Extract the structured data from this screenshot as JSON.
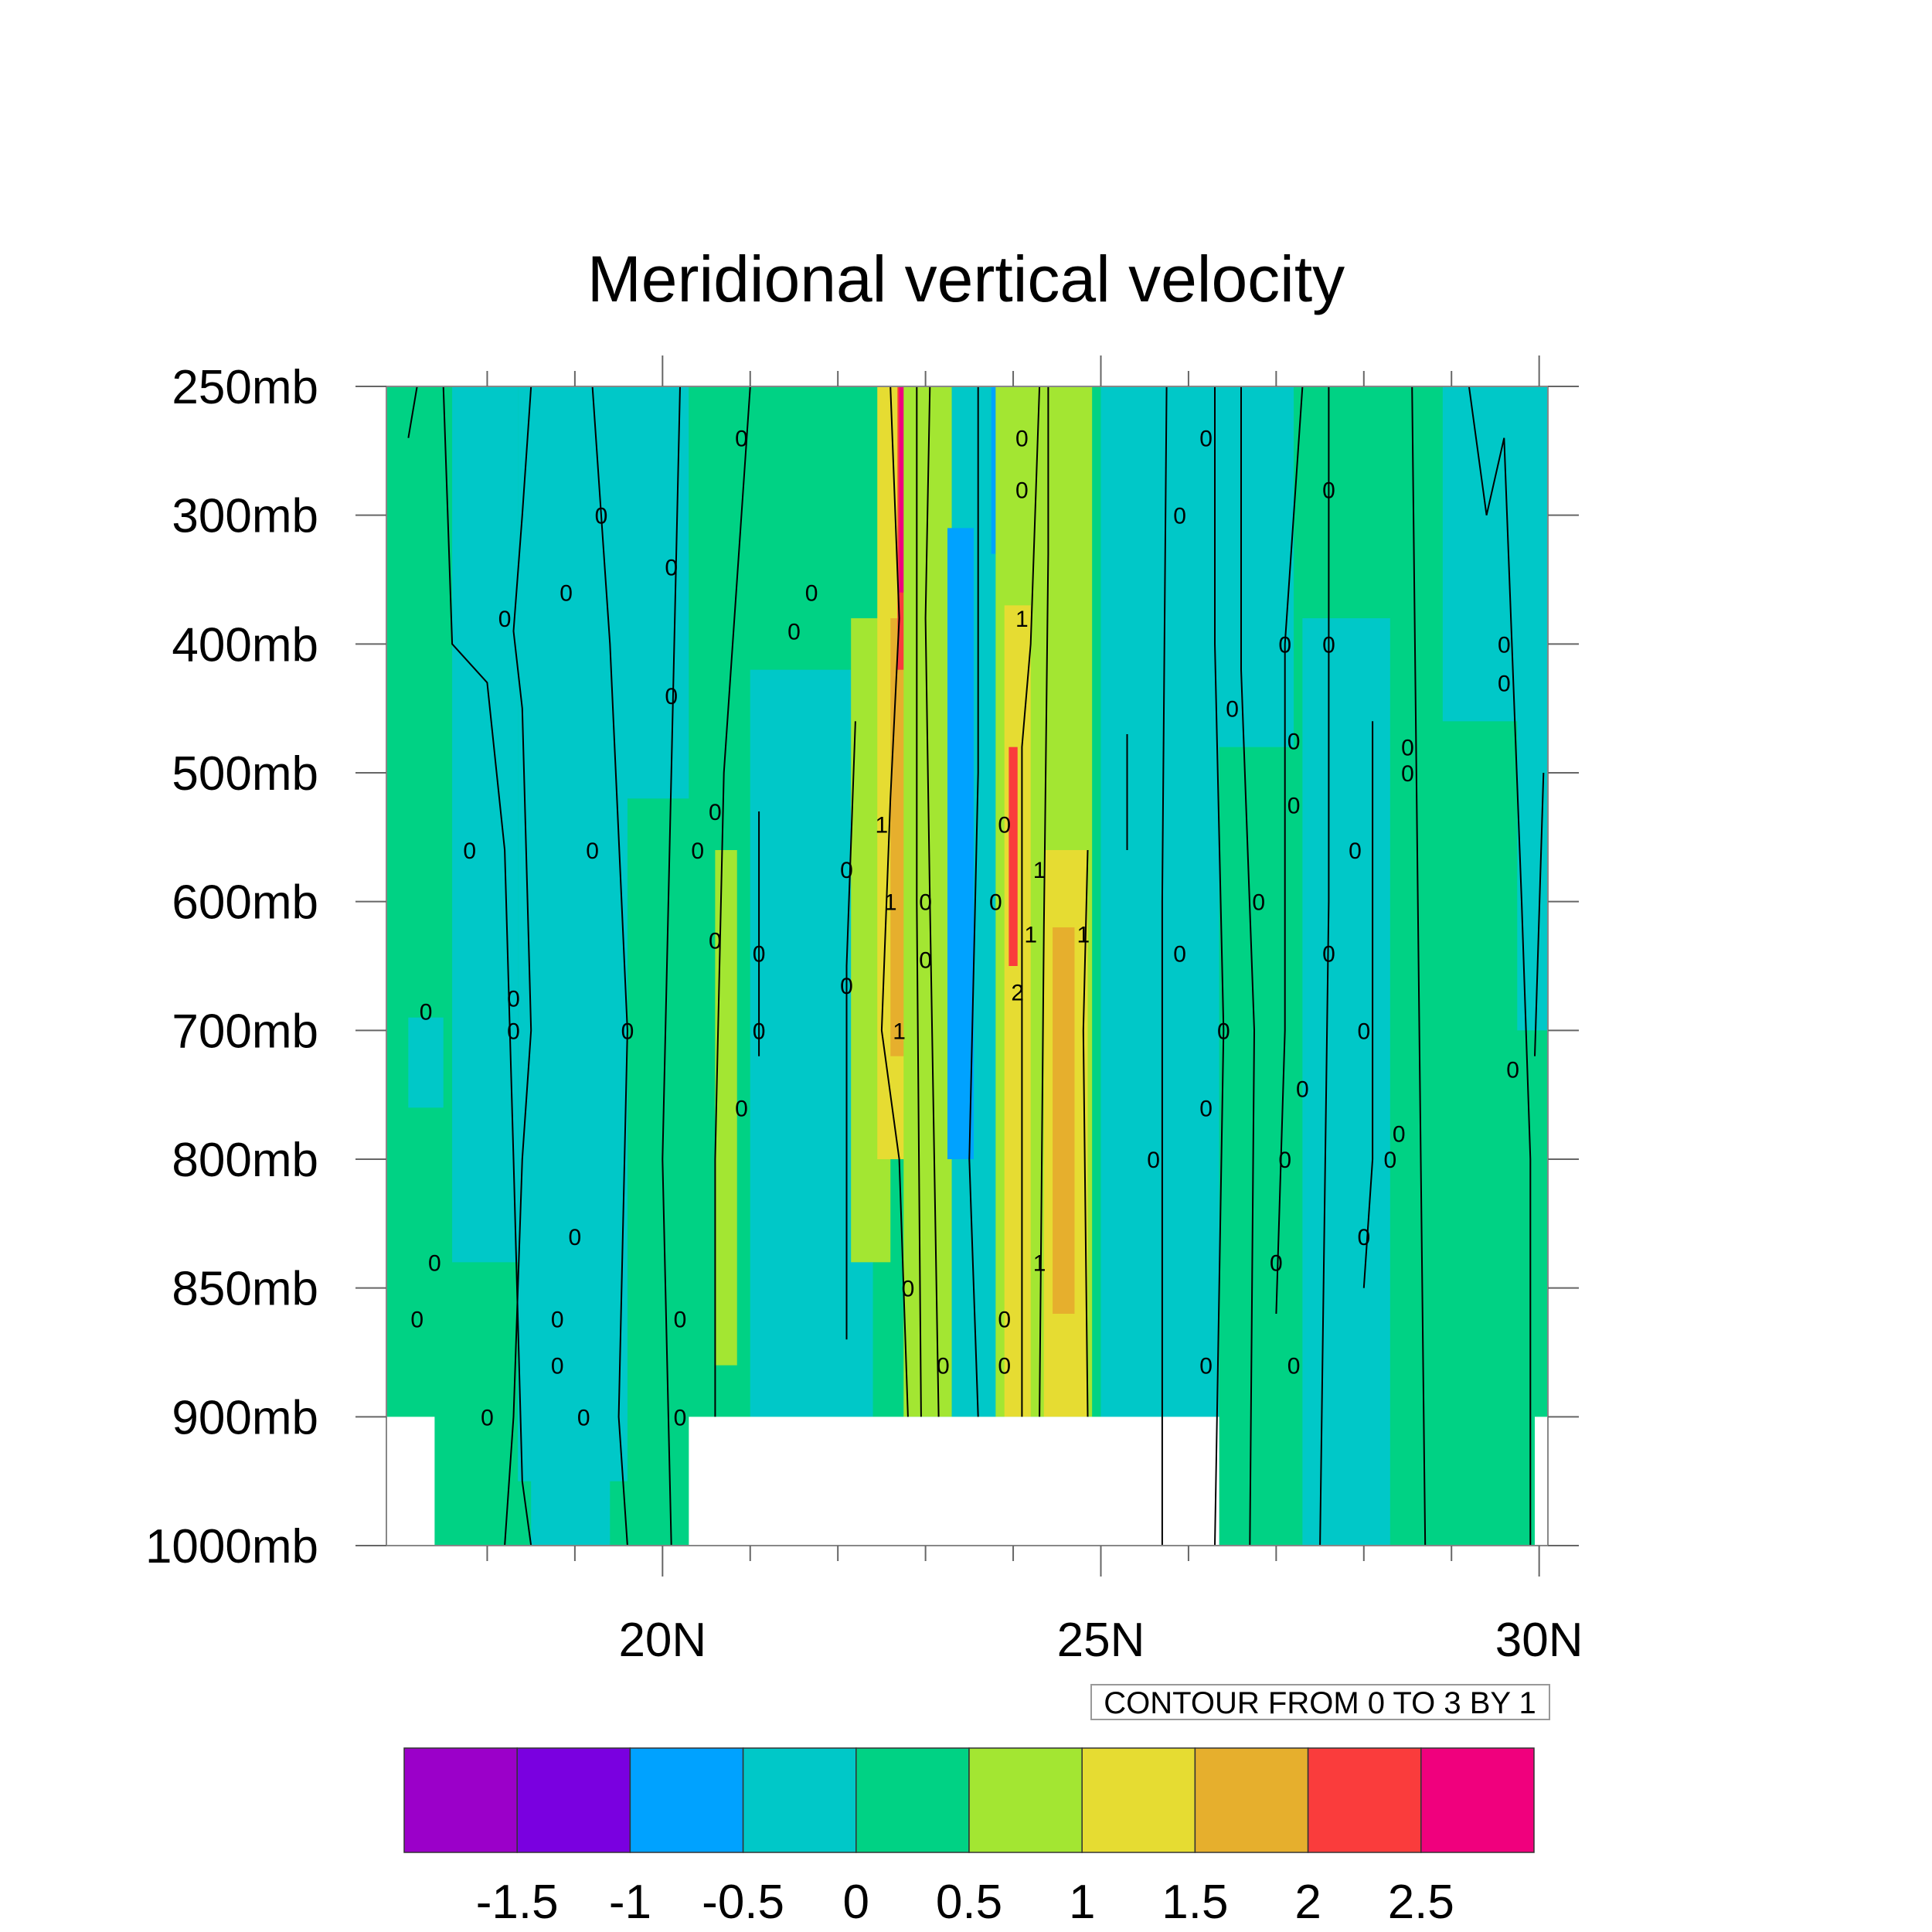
{
  "chart_data": {
    "type": "heatmap",
    "title": "Meridional vertical velocity",
    "xlabel": "",
    "ylabel": "",
    "xlim": [
      16.85,
      30.1
    ],
    "ylim": [
      1000,
      250
    ],
    "x_ticks": [
      20,
      25,
      30
    ],
    "x_tick_labels": [
      "20N",
      "25N",
      "30N"
    ],
    "x_minor_ticks": [
      18,
      19,
      21,
      22,
      23,
      24,
      26,
      27,
      28,
      29
    ],
    "y_levels": [
      250,
      300,
      400,
      500,
      600,
      700,
      800,
      850,
      900,
      1000
    ],
    "y_tick_labels": [
      "250mb",
      "300mb",
      "400mb",
      "500mb",
      "600mb",
      "700mb",
      "800mb",
      "850mb",
      "900mb",
      "1000mb"
    ],
    "contour_info": "CONTOUR FROM 0 TO 3 BY 1",
    "contour_line_labels": [
      "0",
      "1",
      "2"
    ],
    "colorbar": {
      "boundaries": [
        "-1.5",
        "-1",
        "-0.5",
        "0",
        "0.5",
        "1",
        "1.5",
        "2",
        "2.5"
      ],
      "colors": [
        "#9B00C9",
        "#7A00E0",
        "#00A2FF",
        "#00C8C8",
        "#00D284",
        "#A3E632",
        "#E6DC32",
        "#E6AF2D",
        "#FA3C3C",
        "#F0007D"
      ]
    },
    "missing_regions": [
      {
        "lon": [
          16.85,
          17.4
        ],
        "pressure": [
          900,
          1000
        ]
      },
      {
        "lon": [
          20.3,
          26.35
        ],
        "pressure": [
          900,
          1000
        ]
      },
      {
        "lon": [
          29.95,
          30.1
        ],
        "pressure": [
          900,
          1000
        ]
      }
    ],
    "bands": [
      {
        "lon": [
          16.85,
          30.1
        ],
        "pressure": [
          250,
          1000
        ],
        "value": 0.25
      },
      {
        "lon": [
          17.6,
          18.35
        ],
        "pressure": [
          250,
          840
        ],
        "value": -0.25
      },
      {
        "lon": [
          18.35,
          19.6
        ],
        "pressure": [
          250,
          950
        ],
        "value": -0.25
      },
      {
        "lon": [
          17.1,
          17.5
        ],
        "pressure": [
          690,
          760
        ],
        "value": -0.25
      },
      {
        "lon": [
          18.5,
          19.4
        ],
        "pressure": [
          850,
          1000
        ],
        "value": -0.25
      },
      {
        "lon": [
          19.3,
          20.3
        ],
        "pressure": [
          250,
          520
        ],
        "value": -0.25
      },
      {
        "lon": [
          20.3,
          22.4
        ],
        "pressure": [
          250,
          330
        ],
        "value": 0.25
      },
      {
        "lon": [
          21.0,
          22.4
        ],
        "pressure": [
          420,
          900
        ],
        "value": -0.25
      },
      {
        "lon": [
          20.6,
          20.85
        ],
        "pressure": [
          560,
          880
        ],
        "value": 0.75
      },
      {
        "lon": [
          22.15,
          22.6
        ],
        "pressure": [
          380,
          840
        ],
        "value": 0.75
      },
      {
        "lon": [
          22.45,
          22.95
        ],
        "pressure": [
          250,
          800
        ],
        "value": 1.25
      },
      {
        "lon": [
          22.6,
          22.85
        ],
        "pressure": [
          380,
          720
        ],
        "value": 1.75
      },
      {
        "lon": [
          22.68,
          22.78
        ],
        "pressure": [
          250,
          420
        ],
        "value": 2.25
      },
      {
        "lon": [
          22.7,
          22.76
        ],
        "pressure": [
          250,
          360
        ],
        "value": 2.75
      },
      {
        "lon": [
          22.95,
          23.1
        ],
        "pressure": [
          250,
          300
        ],
        "value": 2.25
      },
      {
        "lon": [
          22.75,
          23.3
        ],
        "pressure": [
          250,
          900
        ],
        "value": 0.75
      },
      {
        "lon": [
          23.3,
          23.8
        ],
        "pressure": [
          250,
          900
        ],
        "value": -0.25
      },
      {
        "lon": [
          23.25,
          23.55
        ],
        "pressure": [
          310,
          800
        ],
        "value": -0.75
      },
      {
        "lon": [
          23.75,
          23.85
        ],
        "pressure": [
          250,
          330
        ],
        "value": -0.75
      },
      {
        "lon": [
          23.8,
          24.9
        ],
        "pressure": [
          250,
          900
        ],
        "value": 0.75
      },
      {
        "lon": [
          23.9,
          24.2
        ],
        "pressure": [
          370,
          900
        ],
        "value": 1.25
      },
      {
        "lon": [
          24.35,
          24.85
        ],
        "pressure": [
          560,
          900
        ],
        "value": 1.25
      },
      {
        "lon": [
          24.45,
          24.7
        ],
        "pressure": [
          620,
          860
        ],
        "value": 1.75
      },
      {
        "lon": [
          23.95,
          24.05
        ],
        "pressure": [
          480,
          650
        ],
        "value": 2.25
      },
      {
        "lon": [
          25.2,
          25.4
        ],
        "pressure": [
          390,
          580
        ],
        "value": 0.75
      },
      {
        "lon": [
          25.0,
          26.35
        ],
        "pressure": [
          250,
          1000
        ],
        "value": -0.25
      },
      {
        "lon": [
          26.35,
          27.2
        ],
        "pressure": [
          250,
          480
        ],
        "value": -0.25
      },
      {
        "lon": [
          27.3,
          28.3
        ],
        "pressure": [
          380,
          1000
        ],
        "value": -0.25
      },
      {
        "lon": [
          28.9,
          30.1
        ],
        "pressure": [
          250,
          460
        ],
        "value": -0.25
      },
      {
        "lon": [
          29.75,
          30.1
        ],
        "pressure": [
          250,
          700
        ],
        "value": -0.25
      }
    ],
    "contour_lines": [
      [
        [
          17.1,
          270
        ],
        [
          17.2,
          250
        ]
      ],
      [
        [
          17.5,
          250
        ],
        [
          17.6,
          400
        ],
        [
          18.0,
          430
        ],
        [
          18.2,
          560
        ],
        [
          18.3,
          800
        ],
        [
          18.4,
          950
        ],
        [
          18.5,
          1000
        ]
      ],
      [
        [
          18.5,
          250
        ],
        [
          18.4,
          300
        ],
        [
          18.3,
          390
        ],
        [
          18.4,
          450
        ],
        [
          18.5,
          700
        ],
        [
          18.4,
          800
        ],
        [
          18.3,
          900
        ],
        [
          18.2,
          1000
        ]
      ],
      [
        [
          19.2,
          250
        ],
        [
          19.4,
          400
        ],
        [
          19.6,
          700
        ],
        [
          19.5,
          900
        ],
        [
          19.6,
          1000
        ]
      ],
      [
        [
          20.2,
          250
        ],
        [
          20.1,
          500
        ],
        [
          20.0,
          800
        ],
        [
          20.1,
          1000
        ]
      ],
      [
        [
          21.0,
          250
        ],
        [
          20.7,
          500
        ],
        [
          20.6,
          800
        ],
        [
          20.6,
          900
        ]
      ],
      [
        [
          21.1,
          530
        ],
        [
          21.1,
          720
        ]
      ],
      [
        [
          22.2,
          460
        ],
        [
          22.1,
          650
        ],
        [
          22.1,
          870
        ]
      ],
      [
        [
          22.6,
          250
        ],
        [
          22.7,
          380
        ],
        [
          22.6,
          520
        ],
        [
          22.5,
          700
        ],
        [
          22.7,
          800
        ],
        [
          22.8,
          900
        ]
      ],
      [
        [
          22.9,
          250
        ],
        [
          22.9,
          600
        ],
        [
          22.95,
          900
        ]
      ],
      [
        [
          23.05,
          250
        ],
        [
          23.0,
          380
        ],
        [
          23.05,
          600
        ],
        [
          23.15,
          900
        ]
      ],
      [
        [
          23.6,
          250
        ],
        [
          23.6,
          500
        ],
        [
          23.5,
          800
        ],
        [
          23.6,
          900
        ]
      ],
      [
        [
          24.3,
          250
        ],
        [
          24.2,
          400
        ],
        [
          24.1,
          480
        ],
        [
          24.1,
          900
        ]
      ],
      [
        [
          24.4,
          250
        ],
        [
          24.4,
          330
        ],
        [
          24.35,
          620
        ],
        [
          24.3,
          900
        ]
      ],
      [
        [
          24.85,
          560
        ],
        [
          24.8,
          700
        ],
        [
          24.85,
          900
        ]
      ],
      [
        [
          25.3,
          470
        ],
        [
          25.3,
          560
        ]
      ],
      [
        [
          25.75,
          250
        ],
        [
          25.7,
          600
        ],
        [
          25.7,
          1000
        ]
      ],
      [
        [
          26.3,
          250
        ],
        [
          26.3,
          400
        ],
        [
          26.4,
          700
        ],
        [
          26.3,
          1000
        ]
      ],
      [
        [
          26.6,
          250
        ],
        [
          26.6,
          420
        ],
        [
          26.75,
          700
        ],
        [
          26.7,
          1000
        ]
      ],
      [
        [
          27.3,
          250
        ],
        [
          27.1,
          400
        ],
        [
          27.1,
          700
        ],
        [
          27.0,
          860
        ]
      ],
      [
        [
          27.6,
          250
        ],
        [
          27.6,
          600
        ],
        [
          27.5,
          1000
        ]
      ],
      [
        [
          28.1,
          460
        ],
        [
          28.1,
          800
        ],
        [
          28.0,
          850
        ]
      ],
      [
        [
          28.55,
          250
        ],
        [
          28.6,
          500
        ],
        [
          28.7,
          1000
        ]
      ],
      [
        [
          29.2,
          250
        ],
        [
          29.4,
          300
        ],
        [
          29.6,
          270
        ],
        [
          29.8,
          600
        ],
        [
          29.9,
          800
        ],
        [
          29.9,
          1000
        ]
      ],
      [
        [
          30.05,
          500
        ],
        [
          29.95,
          720
        ]
      ]
    ],
    "contour_label_positions": [
      {
        "text": "0",
        "lon": 20.9,
        "p": 270
      },
      {
        "text": "0",
        "lon": 19.3,
        "p": 300
      },
      {
        "text": "0",
        "lon": 20.1,
        "p": 340
      },
      {
        "text": "0",
        "lon": 18.9,
        "p": 360
      },
      {
        "text": "0",
        "lon": 18.2,
        "p": 380
      },
      {
        "text": "0",
        "lon": 21.7,
        "p": 360
      },
      {
        "text": "0",
        "lon": 21.5,
        "p": 390
      },
      {
        "text": "0",
        "lon": 20.1,
        "p": 440
      },
      {
        "text": "0",
        "lon": 20.6,
        "p": 530
      },
      {
        "text": "0",
        "lon": 17.8,
        "p": 560
      },
      {
        "text": "0",
        "lon": 19.2,
        "p": 560
      },
      {
        "text": "0",
        "lon": 20.4,
        "p": 560
      },
      {
        "text": "0",
        "lon": 22.1,
        "p": 575
      },
      {
        "text": "0",
        "lon": 23.0,
        "p": 600
      },
      {
        "text": "0",
        "lon": 20.6,
        "p": 630
      },
      {
        "text": "0",
        "lon": 21.1,
        "p": 640
      },
      {
        "text": "0",
        "lon": 23.0,
        "p": 645
      },
      {
        "text": "0",
        "lon": 22.1,
        "p": 665
      },
      {
        "text": "0",
        "lon": 17.3,
        "p": 685
      },
      {
        "text": "0",
        "lon": 18.3,
        "p": 675
      },
      {
        "text": "0",
        "lon": 18.3,
        "p": 700
      },
      {
        "text": "0",
        "lon": 19.6,
        "p": 700
      },
      {
        "text": "0",
        "lon": 21.1,
        "p": 700
      },
      {
        "text": "0",
        "lon": 20.9,
        "p": 760
      },
      {
        "text": "0",
        "lon": 19.0,
        "p": 830
      },
      {
        "text": "0",
        "lon": 17.4,
        "p": 840
      },
      {
        "text": "0",
        "lon": 17.2,
        "p": 862
      },
      {
        "text": "0",
        "lon": 18.8,
        "p": 862
      },
      {
        "text": "0",
        "lon": 20.2,
        "p": 862
      },
      {
        "text": "0",
        "lon": 18.8,
        "p": 880
      },
      {
        "text": "0",
        "lon": 18.0,
        "p": 900
      },
      {
        "text": "0",
        "lon": 19.1,
        "p": 900
      },
      {
        "text": "0",
        "lon": 20.2,
        "p": 900
      },
      {
        "text": "0",
        "lon": 22.8,
        "p": 850
      },
      {
        "text": "0",
        "lon": 23.2,
        "p": 880
      },
      {
        "text": "0",
        "lon": 23.9,
        "p": 862
      },
      {
        "text": "0",
        "lon": 23.9,
        "p": 880
      },
      {
        "text": "0",
        "lon": 23.8,
        "p": 600
      },
      {
        "text": "0",
        "lon": 23.9,
        "p": 540
      },
      {
        "text": "0",
        "lon": 24.1,
        "p": 270
      },
      {
        "text": "0",
        "lon": 24.1,
        "p": 290
      },
      {
        "text": "0",
        "lon": 25.9,
        "p": 300
      },
      {
        "text": "0",
        "lon": 26.2,
        "p": 270
      },
      {
        "text": "0",
        "lon": 26.5,
        "p": 450
      },
      {
        "text": "0",
        "lon": 26.8,
        "p": 600
      },
      {
        "text": "0",
        "lon": 25.9,
        "p": 640
      },
      {
        "text": "0",
        "lon": 26.4,
        "p": 700
      },
      {
        "text": "0",
        "lon": 26.2,
        "p": 760
      },
      {
        "text": "0",
        "lon": 25.6,
        "p": 800
      },
      {
        "text": "0",
        "lon": 26.2,
        "p": 880
      },
      {
        "text": "0",
        "lon": 27.1,
        "p": 400
      },
      {
        "text": "0",
        "lon": 27.6,
        "p": 400
      },
      {
        "text": "0",
        "lon": 27.2,
        "p": 475
      },
      {
        "text": "0",
        "lon": 27.2,
        "p": 525
      },
      {
        "text": "0",
        "lon": 27.6,
        "p": 290
      },
      {
        "text": "0",
        "lon": 27.9,
        "p": 560
      },
      {
        "text": "0",
        "lon": 27.6,
        "p": 640
      },
      {
        "text": "0",
        "lon": 28.0,
        "p": 700
      },
      {
        "text": "0",
        "lon": 27.3,
        "p": 745
      },
      {
        "text": "0",
        "lon": 27.1,
        "p": 800
      },
      {
        "text": "0",
        "lon": 27.0,
        "p": 840
      },
      {
        "text": "0",
        "lon": 28.3,
        "p": 800
      },
      {
        "text": "0",
        "lon": 28.4,
        "p": 780
      },
      {
        "text": "0",
        "lon": 28.0,
        "p": 830
      },
      {
        "text": "0",
        "lon": 27.2,
        "p": 880
      },
      {
        "text": "0",
        "lon": 28.5,
        "p": 480
      },
      {
        "text": "0",
        "lon": 28.5,
        "p": 500
      },
      {
        "text": "0",
        "lon": 29.6,
        "p": 400
      },
      {
        "text": "0",
        "lon": 29.6,
        "p": 430
      },
      {
        "text": "0",
        "lon": 29.7,
        "p": 730
      },
      {
        "text": "1",
        "lon": 22.5,
        "p": 540
      },
      {
        "text": "1",
        "lon": 22.6,
        "p": 600
      },
      {
        "text": "1",
        "lon": 22.7,
        "p": 700
      },
      {
        "text": "1",
        "lon": 24.1,
        "p": 380
      },
      {
        "text": "1",
        "lon": 24.3,
        "p": 575
      },
      {
        "text": "1",
        "lon": 24.2,
        "p": 625
      },
      {
        "text": "1",
        "lon": 24.8,
        "p": 625
      },
      {
        "text": "1",
        "lon": 24.3,
        "p": 840
      },
      {
        "text": "2",
        "lon": 24.05,
        "p": 670
      }
    ]
  }
}
